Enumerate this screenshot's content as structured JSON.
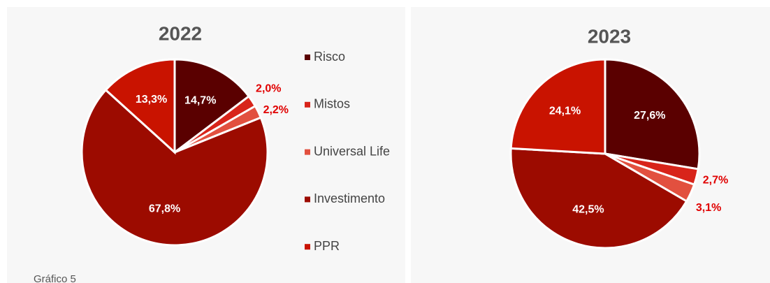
{
  "chart_data": [
    {
      "type": "pie",
      "title": "2022",
      "categories": [
        "Risco",
        "Mistos",
        "Universal Life",
        "Investimento",
        "PPR"
      ],
      "values": [
        14.7,
        2.0,
        2.2,
        67.8,
        13.3
      ],
      "value_labels": [
        "14,7%",
        "2,0%",
        "2,2%",
        "67,8%",
        "13,3%"
      ],
      "colors": [
        "#5a0000",
        "#d8241a",
        "#e2503f",
        "#9c0b00",
        "#c91300"
      ]
    },
    {
      "type": "pie",
      "title": "2023",
      "categories": [
        "Risco",
        "Mistos",
        "Universal Life",
        "Investimento",
        "PPR"
      ],
      "values": [
        27.6,
        2.7,
        3.1,
        42.5,
        24.1
      ],
      "value_labels": [
        "27,6%",
        "2,7%",
        "3,1%",
        "42,5%",
        "24,1%"
      ],
      "colors": [
        "#5a0000",
        "#d8241a",
        "#e2503f",
        "#9c0b00",
        "#c91300"
      ]
    }
  ],
  "caption": "Gráfico 5"
}
